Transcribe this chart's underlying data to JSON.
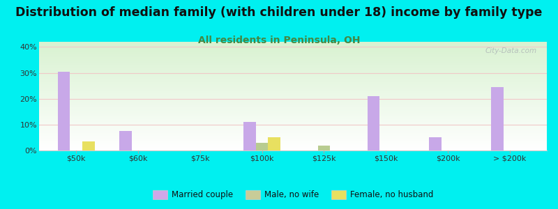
{
  "title": "Distribution of median family (with children under 18) income by family type",
  "subtitle": "All residents in Peninsula, OH",
  "categories": [
    "$50k",
    "$60k",
    "$75k",
    "$100k",
    "$125k",
    "$150k",
    "$200k",
    "> $200k"
  ],
  "married_couple": [
    30.5,
    7.5,
    0,
    11.0,
    0,
    21.0,
    5.0,
    24.5
  ],
  "male_no_wife": [
    0,
    0,
    0,
    3.0,
    2.0,
    0,
    0,
    0
  ],
  "female_no_husband": [
    3.5,
    0,
    0,
    5.0,
    0,
    0,
    0,
    0
  ],
  "bar_colors": {
    "married_couple": "#c8a8e8",
    "male_no_wife": "#b8cc90",
    "female_no_husband": "#e8e060"
  },
  "background_color": "#00f0f0",
  "ylim": [
    0,
    42
  ],
  "yticks": [
    0,
    10,
    20,
    30,
    40
  ],
  "ytick_labels": [
    "0%",
    "10%",
    "20%",
    "30%",
    "40%"
  ],
  "title_fontsize": 12.5,
  "subtitle_fontsize": 10,
  "subtitle_color": "#448844",
  "watermark": "City-Data.com",
  "legend_labels": [
    "Married couple",
    "Male, no wife",
    "Female, no husband"
  ],
  "legend_colors": [
    "#d0a8e8",
    "#c8cc98",
    "#e8e060"
  ]
}
